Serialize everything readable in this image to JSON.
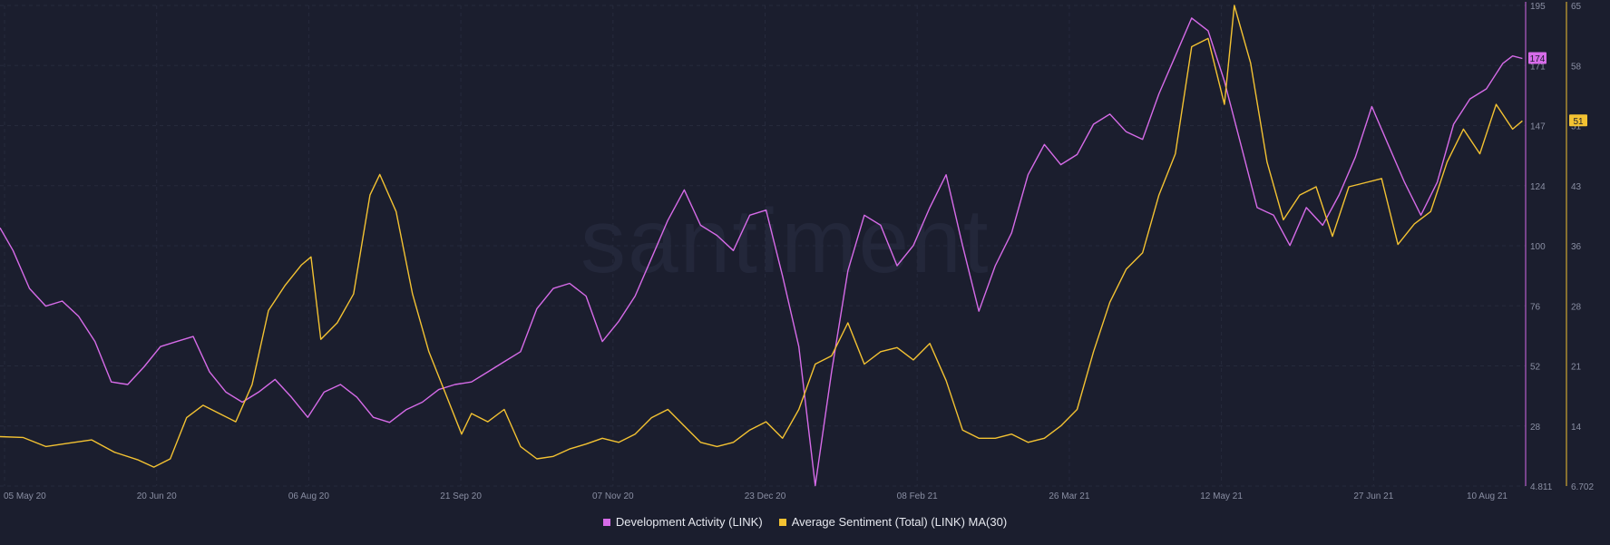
{
  "colors": {
    "background": "#1b1e2e",
    "grid": "#262a3c",
    "axis_text": "#8a8fa3",
    "dev_activity": "#d66be8",
    "sentiment": "#f3c232"
  },
  "watermark": "santiment",
  "chart_data": {
    "type": "line",
    "title": "",
    "x_ticks": [
      "05 May 20",
      "20 Jun 20",
      "06 Aug 20",
      "21 Sep 20",
      "07 Nov 20",
      "23 Dec 20",
      "08 Feb 21",
      "26 Mar 21",
      "12 May 21",
      "27 Jun 21",
      "10 Aug 21"
    ],
    "x_range": [
      "2020-05-01",
      "2021-08-10"
    ],
    "grid": true,
    "legend_placement": "bottom-center",
    "y_left_axis": {
      "series": "Development Activity (LINK)",
      "range": [
        4.811,
        195
      ],
      "ticks": [
        "195",
        "171",
        "147",
        "124",
        "100",
        "76",
        "52",
        "28",
        "4.811"
      ],
      "current_badge": "174"
    },
    "y_right_axis": {
      "series": "Average Sentiment (Total) (LINK) MA(30)",
      "range": [
        6.702,
        65
      ],
      "ticks": [
        "65",
        "58",
        "51",
        "43",
        "36",
        "28",
        "21",
        "14",
        "6.702"
      ],
      "current_badge": "51"
    },
    "series": [
      {
        "name": "Development Activity (LINK)",
        "color": "#d66be8",
        "axis": "left",
        "points": [
          [
            "2020-05-01",
            107
          ],
          [
            "2020-05-05",
            98
          ],
          [
            "2020-05-10",
            83
          ],
          [
            "2020-05-15",
            76
          ],
          [
            "2020-05-20",
            78
          ],
          [
            "2020-05-25",
            72
          ],
          [
            "2020-05-30",
            62
          ],
          [
            "2020-06-04",
            46
          ],
          [
            "2020-06-09",
            45
          ],
          [
            "2020-06-14",
            52
          ],
          [
            "2020-06-19",
            60
          ],
          [
            "2020-06-24",
            62
          ],
          [
            "2020-06-29",
            64
          ],
          [
            "2020-07-04",
            50
          ],
          [
            "2020-07-09",
            42
          ],
          [
            "2020-07-14",
            38
          ],
          [
            "2020-07-19",
            42
          ],
          [
            "2020-07-24",
            47
          ],
          [
            "2020-07-29",
            40
          ],
          [
            "2020-08-03",
            32
          ],
          [
            "2020-08-08",
            42
          ],
          [
            "2020-08-13",
            45
          ],
          [
            "2020-08-18",
            40
          ],
          [
            "2020-08-23",
            32
          ],
          [
            "2020-08-28",
            30
          ],
          [
            "2020-09-02",
            35
          ],
          [
            "2020-09-07",
            38
          ],
          [
            "2020-09-12",
            43
          ],
          [
            "2020-09-17",
            45
          ],
          [
            "2020-09-22",
            46
          ],
          [
            "2020-09-27",
            50
          ],
          [
            "2020-10-02",
            54
          ],
          [
            "2020-10-07",
            58
          ],
          [
            "2020-10-12",
            75
          ],
          [
            "2020-10-17",
            83
          ],
          [
            "2020-10-22",
            85
          ],
          [
            "2020-10-27",
            80
          ],
          [
            "2020-11-01",
            62
          ],
          [
            "2020-11-06",
            70
          ],
          [
            "2020-11-11",
            80
          ],
          [
            "2020-11-16",
            95
          ],
          [
            "2020-11-21",
            110
          ],
          [
            "2020-11-26",
            122
          ],
          [
            "2020-12-01",
            108
          ],
          [
            "2020-12-06",
            104
          ],
          [
            "2020-12-11",
            98
          ],
          [
            "2020-12-16",
            112
          ],
          [
            "2020-12-21",
            114
          ],
          [
            "2020-12-26",
            88
          ],
          [
            "2020-12-31",
            60
          ],
          [
            "2021-01-05",
            5
          ],
          [
            "2021-01-10",
            50
          ],
          [
            "2021-01-15",
            90
          ],
          [
            "2021-01-20",
            112
          ],
          [
            "2021-01-25",
            108
          ],
          [
            "2021-01-30",
            92
          ],
          [
            "2021-02-04",
            100
          ],
          [
            "2021-02-09",
            115
          ],
          [
            "2021-02-14",
            128
          ],
          [
            "2021-02-19",
            100
          ],
          [
            "2021-02-24",
            74
          ],
          [
            "2021-03-01",
            92
          ],
          [
            "2021-03-06",
            105
          ],
          [
            "2021-03-11",
            128
          ],
          [
            "2021-03-16",
            140
          ],
          [
            "2021-03-21",
            132
          ],
          [
            "2021-03-26",
            136
          ],
          [
            "2021-03-31",
            148
          ],
          [
            "2021-04-05",
            152
          ],
          [
            "2021-04-10",
            145
          ],
          [
            "2021-04-15",
            142
          ],
          [
            "2021-04-20",
            160
          ],
          [
            "2021-04-25",
            175
          ],
          [
            "2021-04-30",
            190
          ],
          [
            "2021-05-05",
            185
          ],
          [
            "2021-05-10",
            165
          ],
          [
            "2021-05-15",
            140
          ],
          [
            "2021-05-20",
            115
          ],
          [
            "2021-05-25",
            112
          ],
          [
            "2021-05-30",
            100
          ],
          [
            "2021-06-04",
            115
          ],
          [
            "2021-06-09",
            108
          ],
          [
            "2021-06-14",
            120
          ],
          [
            "2021-06-19",
            135
          ],
          [
            "2021-06-24",
            155
          ],
          [
            "2021-06-29",
            140
          ],
          [
            "2021-07-04",
            125
          ],
          [
            "2021-07-09",
            112
          ],
          [
            "2021-07-14",
            125
          ],
          [
            "2021-07-19",
            148
          ],
          [
            "2021-07-24",
            158
          ],
          [
            "2021-07-29",
            162
          ],
          [
            "2021-08-03",
            172
          ],
          [
            "2021-08-06",
            175
          ],
          [
            "2021-08-09",
            174
          ]
        ]
      },
      {
        "name": "Average Sentiment (Total) (LINK) MA(30)",
        "color": "#f3c232",
        "axis": "right",
        "points": [
          [
            "2020-05-01",
            12.7
          ],
          [
            "2020-05-08",
            12.6
          ],
          [
            "2020-05-15",
            11.5
          ],
          [
            "2020-05-22",
            11.9
          ],
          [
            "2020-05-29",
            12.3
          ],
          [
            "2020-06-05",
            10.8
          ],
          [
            "2020-06-12",
            9.9
          ],
          [
            "2020-06-17",
            9.0
          ],
          [
            "2020-06-22",
            10.0
          ],
          [
            "2020-06-27",
            15.0
          ],
          [
            "2020-07-02",
            16.5
          ],
          [
            "2020-07-07",
            15.5
          ],
          [
            "2020-07-12",
            14.5
          ],
          [
            "2020-07-17",
            19.0
          ],
          [
            "2020-07-22",
            28.0
          ],
          [
            "2020-07-27",
            31.0
          ],
          [
            "2020-08-01",
            33.5
          ],
          [
            "2020-08-04",
            34.5
          ],
          [
            "2020-08-07",
            24.5
          ],
          [
            "2020-08-12",
            26.5
          ],
          [
            "2020-08-17",
            30.0
          ],
          [
            "2020-08-22",
            42.0
          ],
          [
            "2020-08-25",
            44.5
          ],
          [
            "2020-08-30",
            40.0
          ],
          [
            "2020-09-04",
            30.0
          ],
          [
            "2020-09-09",
            23.0
          ],
          [
            "2020-09-14",
            18.0
          ],
          [
            "2020-09-19",
            13.0
          ],
          [
            "2020-09-22",
            15.5
          ],
          [
            "2020-09-27",
            14.5
          ],
          [
            "2020-10-02",
            16.0
          ],
          [
            "2020-10-07",
            11.5
          ],
          [
            "2020-10-12",
            10.0
          ],
          [
            "2020-10-17",
            10.3
          ],
          [
            "2020-10-22",
            11.2
          ],
          [
            "2020-10-27",
            11.8
          ],
          [
            "2020-11-01",
            12.5
          ],
          [
            "2020-11-06",
            12.0
          ],
          [
            "2020-11-11",
            13.0
          ],
          [
            "2020-11-16",
            15.0
          ],
          [
            "2020-11-21",
            16.0
          ],
          [
            "2020-11-26",
            14.0
          ],
          [
            "2020-12-01",
            12.0
          ],
          [
            "2020-12-06",
            11.5
          ],
          [
            "2020-12-11",
            12.0
          ],
          [
            "2020-12-16",
            13.5
          ],
          [
            "2020-12-21",
            14.5
          ],
          [
            "2020-12-26",
            12.5
          ],
          [
            "2020-12-31",
            16.0
          ],
          [
            "2021-01-05",
            21.5
          ],
          [
            "2021-01-10",
            22.5
          ],
          [
            "2021-01-15",
            26.5
          ],
          [
            "2021-01-20",
            21.5
          ],
          [
            "2021-01-25",
            23.0
          ],
          [
            "2021-01-30",
            23.5
          ],
          [
            "2021-02-04",
            22.0
          ],
          [
            "2021-02-09",
            24.0
          ],
          [
            "2021-02-14",
            19.5
          ],
          [
            "2021-02-19",
            13.5
          ],
          [
            "2021-02-24",
            12.5
          ],
          [
            "2021-03-01",
            12.5
          ],
          [
            "2021-03-06",
            13.0
          ],
          [
            "2021-03-11",
            12.0
          ],
          [
            "2021-03-16",
            12.5
          ],
          [
            "2021-03-21",
            14.0
          ],
          [
            "2021-03-26",
            16.0
          ],
          [
            "2021-03-31",
            23.0
          ],
          [
            "2021-04-05",
            29.0
          ],
          [
            "2021-04-10",
            33.0
          ],
          [
            "2021-04-15",
            35.0
          ],
          [
            "2021-04-20",
            42.0
          ],
          [
            "2021-04-25",
            47.0
          ],
          [
            "2021-04-30",
            60.0
          ],
          [
            "2021-05-05",
            61.0
          ],
          [
            "2021-05-10",
            53.0
          ],
          [
            "2021-05-13",
            65.0
          ],
          [
            "2021-05-18",
            58.0
          ],
          [
            "2021-05-23",
            46.0
          ],
          [
            "2021-05-28",
            39.0
          ],
          [
            "2021-06-02",
            42.0
          ],
          [
            "2021-06-07",
            43.0
          ],
          [
            "2021-06-12",
            37.0
          ],
          [
            "2021-06-17",
            43.0
          ],
          [
            "2021-06-22",
            43.5
          ],
          [
            "2021-06-27",
            44.0
          ],
          [
            "2021-07-02",
            36.0
          ],
          [
            "2021-07-07",
            38.5
          ],
          [
            "2021-07-12",
            40.0
          ],
          [
            "2021-07-17",
            46.0
          ],
          [
            "2021-07-22",
            50.0
          ],
          [
            "2021-07-27",
            47.0
          ],
          [
            "2021-08-01",
            53.0
          ],
          [
            "2021-08-06",
            50.0
          ],
          [
            "2021-08-09",
            51.0
          ]
        ]
      }
    ]
  }
}
